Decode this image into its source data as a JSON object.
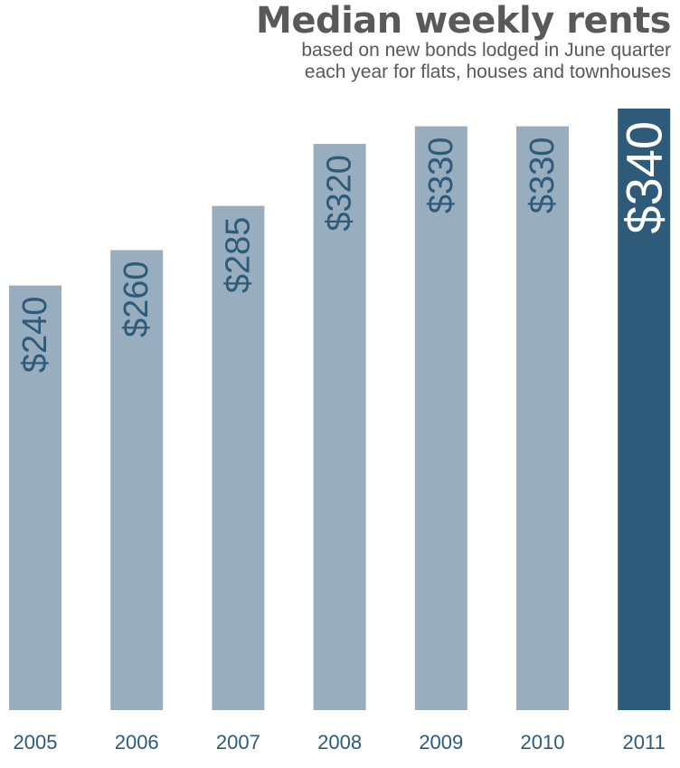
{
  "title": "Median weekly rents",
  "subtitle": {
    "line1": "based on new bonds lodged in June quarter",
    "line2": "each year for flats, houses and townhouses"
  },
  "colors": {
    "bar": "#98adbd",
    "highlight_bar": "#2d5b79",
    "value_label": "#2d5b79",
    "highlight_value_label": "#ffffff",
    "year_label": "#2d5b79",
    "title": "#595959"
  },
  "chart_data": {
    "type": "bar",
    "categories": [
      "2005",
      "2006",
      "2007",
      "2008",
      "2009",
      "2010",
      "2011"
    ],
    "values": [
      240,
      260,
      285,
      320,
      330,
      330,
      340
    ],
    "data_labels": [
      "$240",
      "$260",
      "$285",
      "$320",
      "$330",
      "$330",
      "$340"
    ],
    "highlight_index": 6,
    "title": "Median weekly rents",
    "subtitle": "based on new bonds lodged in June quarter each year for flats, houses and townhouses",
    "xlabel": "",
    "ylabel": "",
    "ylim": [
      0,
      340
    ],
    "grid": false,
    "legend": "none"
  }
}
